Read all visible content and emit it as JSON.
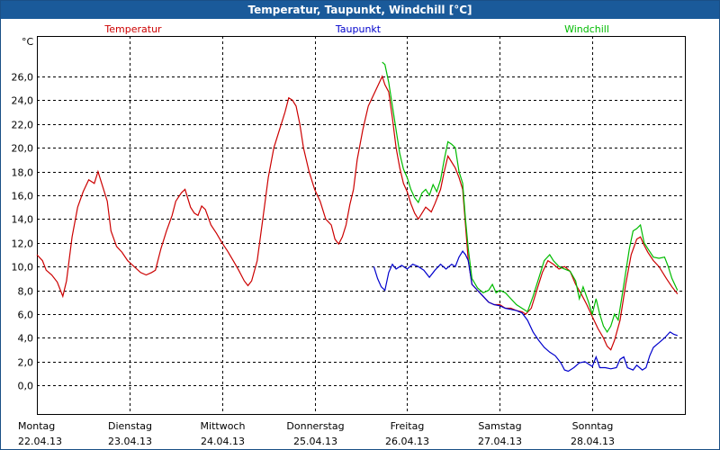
{
  "window": {
    "title": "Temperatur, Taupunkt, Windchill [°C]"
  },
  "chart_data": {
    "type": "line",
    "title": "Temperatur, Taupunkt, Windchill [°C]",
    "ylabel": "°C",
    "xlabel": "",
    "ylim": [
      -2.4,
      29.4
    ],
    "xlim": [
      0,
      7
    ],
    "grid": true,
    "legend_position": "top",
    "y_ticks": [
      0,
      2,
      4,
      6,
      8,
      10,
      12,
      14,
      16,
      18,
      20,
      22,
      24,
      26
    ],
    "y_tick_labels": [
      "0,0",
      "2,0",
      "4,0",
      "6,0",
      "8,0",
      "10,0",
      "12,0",
      "14,0",
      "16,0",
      "18,0",
      "20,0",
      "22,0",
      "24,0",
      "26,0"
    ],
    "x_ticks": [
      {
        "x": 0,
        "day": "Montag",
        "date": "22.04.13"
      },
      {
        "x": 1,
        "day": "Dienstag",
        "date": "23.04.13"
      },
      {
        "x": 2,
        "day": "Mittwoch",
        "date": "24.04.13"
      },
      {
        "x": 3,
        "day": "Donnerstag",
        "date": "25.04.13"
      },
      {
        "x": 4,
        "day": "Freitag",
        "date": "26.04.13"
      },
      {
        "x": 5,
        "day": "Samstag",
        "date": "27.04.13"
      },
      {
        "x": 6,
        "day": "Sonntag",
        "date": "28.04.13"
      }
    ],
    "series": [
      {
        "name": "Temperatur",
        "color": "#cc0000",
        "points": [
          [
            0.0,
            11.0
          ],
          [
            0.06,
            10.5
          ],
          [
            0.1,
            9.7
          ],
          [
            0.16,
            9.3
          ],
          [
            0.22,
            8.7
          ],
          [
            0.28,
            7.5
          ],
          [
            0.32,
            8.8
          ],
          [
            0.38,
            12.5
          ],
          [
            0.44,
            15.0
          ],
          [
            0.5,
            16.3
          ],
          [
            0.56,
            17.3
          ],
          [
            0.62,
            17.0
          ],
          [
            0.66,
            18.0
          ],
          [
            0.7,
            17.0
          ],
          [
            0.76,
            15.5
          ],
          [
            0.8,
            13.0
          ],
          [
            0.86,
            11.7
          ],
          [
            0.92,
            11.2
          ],
          [
            0.98,
            10.5
          ],
          [
            1.05,
            10.0
          ],
          [
            1.12,
            9.5
          ],
          [
            1.18,
            9.3
          ],
          [
            1.24,
            9.5
          ],
          [
            1.28,
            9.7
          ],
          [
            1.34,
            11.5
          ],
          [
            1.4,
            13.0
          ],
          [
            1.46,
            14.3
          ],
          [
            1.5,
            15.5
          ],
          [
            1.56,
            16.2
          ],
          [
            1.6,
            16.5
          ],
          [
            1.66,
            15.0
          ],
          [
            1.7,
            14.5
          ],
          [
            1.74,
            14.3
          ],
          [
            1.78,
            15.1
          ],
          [
            1.82,
            14.8
          ],
          [
            1.88,
            13.5
          ],
          [
            1.94,
            12.8
          ],
          [
            2.0,
            12.0
          ],
          [
            2.06,
            11.3
          ],
          [
            2.12,
            10.5
          ],
          [
            2.18,
            9.7
          ],
          [
            2.24,
            8.8
          ],
          [
            2.28,
            8.4
          ],
          [
            2.32,
            8.8
          ],
          [
            2.38,
            10.5
          ],
          [
            2.44,
            14.0
          ],
          [
            2.5,
            17.5
          ],
          [
            2.56,
            20.0
          ],
          [
            2.62,
            21.5
          ],
          [
            2.68,
            23.0
          ],
          [
            2.72,
            24.2
          ],
          [
            2.76,
            24.0
          ],
          [
            2.8,
            23.5
          ],
          [
            2.84,
            22.0
          ],
          [
            2.88,
            20.0
          ],
          [
            2.94,
            18.0
          ],
          [
            3.0,
            16.5
          ],
          [
            3.06,
            15.5
          ],
          [
            3.12,
            14.0
          ],
          [
            3.18,
            13.5
          ],
          [
            3.22,
            12.3
          ],
          [
            3.26,
            11.9
          ],
          [
            3.3,
            12.5
          ],
          [
            3.34,
            13.5
          ],
          [
            3.38,
            15.2
          ],
          [
            3.42,
            16.5
          ],
          [
            3.46,
            19.0
          ],
          [
            3.52,
            21.5
          ],
          [
            3.58,
            23.5
          ],
          [
            3.64,
            24.5
          ],
          [
            3.7,
            25.5
          ],
          [
            3.73,
            26.0
          ],
          [
            3.76,
            25.3
          ],
          [
            3.8,
            24.7
          ],
          [
            3.84,
            22.5
          ],
          [
            3.88,
            20.0
          ],
          [
            3.92,
            18.3
          ],
          [
            3.96,
            17.0
          ],
          [
            4.0,
            16.3
          ],
          [
            4.04,
            15.3
          ],
          [
            4.08,
            14.5
          ],
          [
            4.12,
            14.0
          ],
          [
            4.16,
            14.5
          ],
          [
            4.2,
            15.0
          ],
          [
            4.26,
            14.6
          ],
          [
            4.3,
            15.3
          ],
          [
            4.36,
            16.5
          ],
          [
            4.4,
            18.0
          ],
          [
            4.44,
            19.3
          ],
          [
            4.48,
            18.8
          ],
          [
            4.52,
            18.3
          ],
          [
            4.56,
            17.5
          ],
          [
            4.6,
            16.5
          ],
          [
            4.63,
            13.5
          ],
          [
            4.66,
            10.5
          ],
          [
            4.7,
            8.5
          ],
          [
            4.76,
            8.0
          ],
          [
            4.82,
            7.5
          ],
          [
            4.88,
            7.0
          ],
          [
            4.94,
            6.8
          ],
          [
            5.0,
            6.8
          ],
          [
            5.06,
            6.5
          ],
          [
            5.12,
            6.5
          ],
          [
            5.18,
            6.3
          ],
          [
            5.24,
            6.2
          ],
          [
            5.28,
            6.0
          ],
          [
            5.34,
            6.5
          ],
          [
            5.4,
            8.0
          ],
          [
            5.46,
            9.5
          ],
          [
            5.52,
            10.5
          ],
          [
            5.58,
            10.2
          ],
          [
            5.64,
            9.8
          ],
          [
            5.7,
            10.0
          ],
          [
            5.76,
            9.6
          ],
          [
            5.82,
            8.5
          ],
          [
            5.88,
            7.7
          ],
          [
            5.94,
            6.8
          ],
          [
            6.0,
            5.8
          ],
          [
            6.06,
            4.8
          ],
          [
            6.12,
            4.0
          ],
          [
            6.16,
            3.3
          ],
          [
            6.2,
            3.0
          ],
          [
            6.24,
            3.8
          ],
          [
            6.3,
            5.5
          ],
          [
            6.36,
            8.5
          ],
          [
            6.42,
            11.0
          ],
          [
            6.48,
            12.3
          ],
          [
            6.52,
            12.5
          ],
          [
            6.56,
            11.8
          ],
          [
            6.6,
            11.2
          ],
          [
            6.66,
            10.5
          ],
          [
            6.72,
            10.0
          ],
          [
            6.8,
            9.0
          ],
          [
            6.86,
            8.3
          ],
          [
            6.92,
            7.7
          ]
        ]
      },
      {
        "name": "Taupunkt",
        "color": "#0000cc",
        "points": [
          [
            3.64,
            10.0
          ],
          [
            3.68,
            9.0
          ],
          [
            3.72,
            8.3
          ],
          [
            3.76,
            8.0
          ],
          [
            3.8,
            9.5
          ],
          [
            3.84,
            10.2
          ],
          [
            3.88,
            9.8
          ],
          [
            3.94,
            10.1
          ],
          [
            4.0,
            9.8
          ],
          [
            4.06,
            10.2
          ],
          [
            4.12,
            10.0
          ],
          [
            4.18,
            9.7
          ],
          [
            4.24,
            9.1
          ],
          [
            4.3,
            9.7
          ],
          [
            4.36,
            10.2
          ],
          [
            4.42,
            9.8
          ],
          [
            4.48,
            10.2
          ],
          [
            4.52,
            10.0
          ],
          [
            4.56,
            10.8
          ],
          [
            4.6,
            11.3
          ],
          [
            4.63,
            11.0
          ],
          [
            4.66,
            10.5
          ],
          [
            4.7,
            8.5
          ],
          [
            4.76,
            8.0
          ],
          [
            4.82,
            7.5
          ],
          [
            4.88,
            7.0
          ],
          [
            4.94,
            6.8
          ],
          [
            5.0,
            6.7
          ],
          [
            5.06,
            6.5
          ],
          [
            5.12,
            6.4
          ],
          [
            5.18,
            6.3
          ],
          [
            5.24,
            6.1
          ],
          [
            5.3,
            5.5
          ],
          [
            5.36,
            4.5
          ],
          [
            5.42,
            3.8
          ],
          [
            5.48,
            3.2
          ],
          [
            5.54,
            2.8
          ],
          [
            5.6,
            2.5
          ],
          [
            5.66,
            1.9
          ],
          [
            5.7,
            1.3
          ],
          [
            5.74,
            1.2
          ],
          [
            5.8,
            1.5
          ],
          [
            5.86,
            1.9
          ],
          [
            5.92,
            2.0
          ],
          [
            5.96,
            1.8
          ],
          [
            6.0,
            1.6
          ],
          [
            6.04,
            2.4
          ],
          [
            6.08,
            1.5
          ],
          [
            6.14,
            1.5
          ],
          [
            6.2,
            1.4
          ],
          [
            6.26,
            1.5
          ],
          [
            6.3,
            2.2
          ],
          [
            6.34,
            2.4
          ],
          [
            6.38,
            1.5
          ],
          [
            6.44,
            1.3
          ],
          [
            6.48,
            1.7
          ],
          [
            6.54,
            1.3
          ],
          [
            6.58,
            1.5
          ],
          [
            6.62,
            2.5
          ],
          [
            6.66,
            3.2
          ],
          [
            6.72,
            3.6
          ],
          [
            6.78,
            4.0
          ],
          [
            6.84,
            4.5
          ],
          [
            6.88,
            4.3
          ],
          [
            6.92,
            4.2
          ]
        ]
      },
      {
        "name": "Windchill",
        "color": "#00bb00",
        "points": [
          [
            3.73,
            27.2
          ],
          [
            3.76,
            27.0
          ],
          [
            3.8,
            25.5
          ],
          [
            3.84,
            23.5
          ],
          [
            3.88,
            21.5
          ],
          [
            3.92,
            19.5
          ],
          [
            3.96,
            18.2
          ],
          [
            4.0,
            17.5
          ],
          [
            4.04,
            16.5
          ],
          [
            4.08,
            15.8
          ],
          [
            4.12,
            15.4
          ],
          [
            4.16,
            16.2
          ],
          [
            4.2,
            16.5
          ],
          [
            4.24,
            16.0
          ],
          [
            4.28,
            16.9
          ],
          [
            4.32,
            16.3
          ],
          [
            4.36,
            17.3
          ],
          [
            4.4,
            19.0
          ],
          [
            4.44,
            20.5
          ],
          [
            4.48,
            20.3
          ],
          [
            4.52,
            20.0
          ],
          [
            4.56,
            18.0
          ],
          [
            4.6,
            17.0
          ],
          [
            4.63,
            14.0
          ],
          [
            4.66,
            11.5
          ],
          [
            4.7,
            9.0
          ],
          [
            4.76,
            8.2
          ],
          [
            4.82,
            7.8
          ],
          [
            4.88,
            8.0
          ],
          [
            4.92,
            8.5
          ],
          [
            4.96,
            7.8
          ],
          [
            5.0,
            8.0
          ],
          [
            5.06,
            7.8
          ],
          [
            5.12,
            7.3
          ],
          [
            5.18,
            6.8
          ],
          [
            5.24,
            6.5
          ],
          [
            5.3,
            6.2
          ],
          [
            5.36,
            7.5
          ],
          [
            5.42,
            9.0
          ],
          [
            5.48,
            10.5
          ],
          [
            5.54,
            11.0
          ],
          [
            5.58,
            10.5
          ],
          [
            5.64,
            10.0
          ],
          [
            5.7,
            9.8
          ],
          [
            5.76,
            9.6
          ],
          [
            5.82,
            8.8
          ],
          [
            5.86,
            7.3
          ],
          [
            5.9,
            8.3
          ],
          [
            5.96,
            7.0
          ],
          [
            6.0,
            6.0
          ],
          [
            6.04,
            7.3
          ],
          [
            6.08,
            6.0
          ],
          [
            6.12,
            5.0
          ],
          [
            6.16,
            4.5
          ],
          [
            6.2,
            5.0
          ],
          [
            6.24,
            6.0
          ],
          [
            6.28,
            5.5
          ],
          [
            6.32,
            7.5
          ],
          [
            6.36,
            9.5
          ],
          [
            6.4,
            11.5
          ],
          [
            6.44,
            13.0
          ],
          [
            6.48,
            13.2
          ],
          [
            6.52,
            13.5
          ],
          [
            6.56,
            12.0
          ],
          [
            6.6,
            11.5
          ],
          [
            6.66,
            10.8
          ],
          [
            6.72,
            10.7
          ],
          [
            6.78,
            10.8
          ],
          [
            6.82,
            10.0
          ],
          [
            6.86,
            9.0
          ],
          [
            6.92,
            8.0
          ]
        ]
      }
    ]
  }
}
